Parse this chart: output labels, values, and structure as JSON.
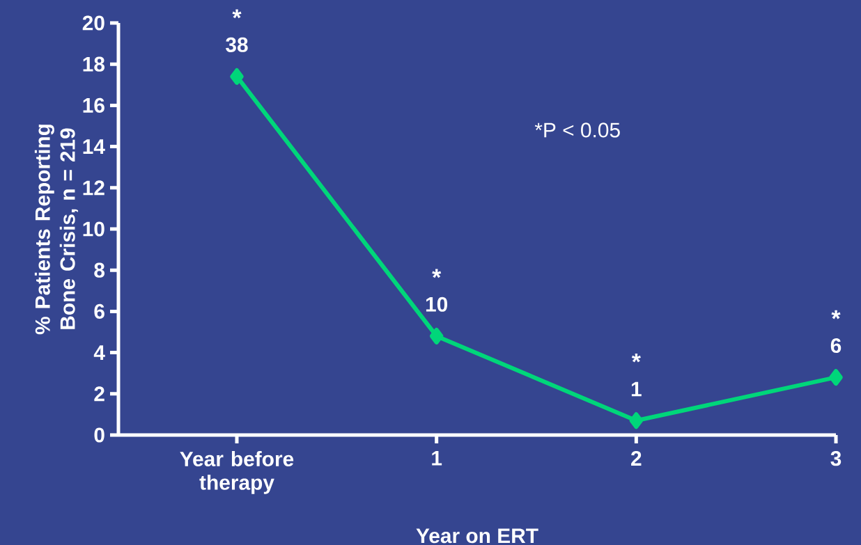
{
  "chart_data": {
    "type": "line",
    "xlabel": "Year on ERT",
    "ylabel": "% Patients Reporting Bone Crisis, n = 219",
    "categories": [
      "Year before therapy",
      "1",
      "2",
      "3"
    ],
    "series": [
      {
        "color": "#00d67a",
        "values": [
          17.4,
          4.8,
          0.7,
          2.8
        ]
      }
    ],
    "ylim": [
      0,
      20
    ],
    "yticks": [
      0,
      2,
      4,
      6,
      8,
      10,
      12,
      14,
      16,
      18,
      20
    ],
    "marker": "diamond",
    "line_style": "solid",
    "grid": false,
    "annotations": [
      {
        "text": "*",
        "x": "Year before therapy",
        "y": 17.4
      },
      {
        "text": "38",
        "x": "Year before therapy",
        "y": 17.4
      },
      {
        "text": "*",
        "x": "1",
        "y": 4.8
      },
      {
        "text": "10",
        "x": "1",
        "y": 4.8
      },
      {
        "text": "*",
        "x": "2",
        "y": 0.7
      },
      {
        "text": "1",
        "x": "2",
        "y": 0.7
      },
      {
        "text": "*",
        "x": "3",
        "y": 2.8
      },
      {
        "text": "6",
        "x": "3",
        "y": 2.8
      },
      "*P < 0.05"
    ]
  }
}
